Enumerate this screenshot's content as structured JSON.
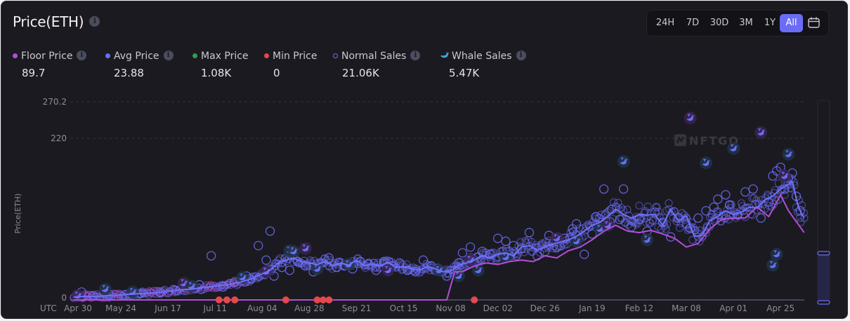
{
  "header": {
    "title": "Price(ETH)"
  },
  "range_buttons": [
    {
      "label": "24H",
      "active": false
    },
    {
      "label": "7D",
      "active": false
    },
    {
      "label": "30D",
      "active": false
    },
    {
      "label": "3M",
      "active": false
    },
    {
      "label": "1Y",
      "active": false
    },
    {
      "label": "All",
      "active": true
    }
  ],
  "calendar_icon": "calendar-icon",
  "legend": [
    {
      "label": "Floor Price",
      "value": "89.7",
      "color": "#b14fd8",
      "marker": "dot",
      "info": true
    },
    {
      "label": "Avg Price",
      "value": "23.88",
      "color": "#6b6cf6",
      "marker": "dot",
      "info": true
    },
    {
      "label": "Max Price",
      "value": "1.08K",
      "color": "#2e9d4f",
      "marker": "dot",
      "info": false
    },
    {
      "label": "Min Price",
      "value": "0",
      "color": "#e5484d",
      "marker": "dot",
      "info": false
    },
    {
      "label": "Normal Sales",
      "value": "21.06K",
      "color": "#6b6cf6",
      "marker": "ring",
      "info": true
    },
    {
      "label": "Whale Sales",
      "value": "5.47K",
      "color": "#3fa3d6",
      "marker": "whale",
      "info": true
    }
  ],
  "watermark": "NFTGO",
  "slider": {
    "range_start_percent": 0,
    "range_end_percent": 25
  },
  "chart_data": {
    "type": "scatter",
    "title": "Price(ETH)",
    "ylabel": "Price(ETH)",
    "xlabel": "",
    "x_prefix": "UTC",
    "ylim": [
      0,
      270.2
    ],
    "y_ticks": [
      0,
      220,
      270.2
    ],
    "y_tick_labels": [
      "0",
      "220",
      "270.2"
    ],
    "grid": true,
    "x_tick_labels": [
      "Apr 30",
      "May 24",
      "Jun 17",
      "Jul 11",
      "Aug 04",
      "Aug 28",
      "Sep 21",
      "Oct 15",
      "Nov 08",
      "Dec 02",
      "Dec 26",
      "Jan 19",
      "Feb 12",
      "Mar 08",
      "Apr 01",
      "Apr 25"
    ],
    "x_tick_days": [
      0,
      24,
      48,
      72,
      96,
      120,
      144,
      168,
      192,
      216,
      240,
      264,
      288,
      312,
      336,
      360
    ],
    "x_range_days": [
      0,
      373
    ],
    "series": [
      {
        "name": "Avg Price",
        "type": "line",
        "color": "#6f72f8",
        "x": [
          0,
          6,
          12,
          18,
          24,
          30,
          36,
          42,
          48,
          54,
          60,
          66,
          72,
          78,
          84,
          88,
          92,
          96,
          100,
          104,
          108,
          112,
          116,
          120,
          124,
          128,
          132,
          136,
          140,
          144,
          148,
          152,
          156,
          160,
          164,
          168,
          172,
          176,
          180,
          184,
          188,
          192,
          196,
          200,
          204,
          208,
          212,
          216,
          220,
          224,
          228,
          232,
          236,
          240,
          244,
          248,
          252,
          256,
          260,
          264,
          268,
          272,
          276,
          280,
          284,
          288,
          292,
          296,
          300,
          304,
          308,
          312,
          316,
          320,
          324,
          328,
          332,
          336,
          340,
          344,
          348,
          352,
          356,
          360,
          363,
          366,
          369,
          372
        ],
        "y": [
          1,
          2,
          2,
          3,
          4,
          5,
          6,
          7,
          9,
          11,
          12,
          14,
          16,
          18,
          21,
          24,
          28,
          33,
          38,
          48,
          52,
          55,
          50,
          48,
          46,
          50,
          44,
          48,
          45,
          52,
          44,
          47,
          44,
          49,
          42,
          43,
          40,
          38,
          43,
          40,
          36,
          37,
          45,
          48,
          52,
          58,
          55,
          60,
          62,
          58,
          70,
          72,
          66,
          70,
          74,
          77,
          80,
          85,
          92,
          100,
          104,
          112,
          122,
          115,
          110,
          115,
          114,
          115,
          100,
          122,
          106,
          113,
          85,
          86,
          107,
          112,
          120,
          115,
          118,
          125,
          124,
          135,
          140,
          150,
          155,
          160,
          125,
          110
        ]
      },
      {
        "name": "Floor Price",
        "type": "line",
        "color": "#b14fd8",
        "x": [
          0,
          50,
          100,
          150,
          190,
          194,
          198,
          204,
          210,
          216,
          222,
          228,
          234,
          240,
          246,
          252,
          258,
          264,
          270,
          276,
          282,
          288,
          294,
          300,
          306,
          312,
          318,
          324,
          330,
          336,
          342,
          348,
          354,
          360,
          364,
          368,
          372
        ],
        "y": [
          0,
          0,
          0,
          0,
          0,
          36,
          36,
          44,
          48,
          46,
          50,
          52,
          50,
          58,
          55,
          65,
          70,
          80,
          92,
          100,
          92,
          90,
          93,
          88,
          82,
          70,
          75,
          95,
          108,
          110,
          110,
          125,
          112,
          142,
          120,
          105,
          90
        ]
      },
      {
        "name": "Min Price",
        "type": "scatter",
        "color": "#e5484d",
        "x": [
          74,
          78,
          82,
          108,
          124,
          127,
          130,
          204
        ],
        "y": [
          0,
          0,
          0,
          0,
          0,
          0,
          0,
          0
        ]
      }
    ],
    "normal_sales_sample": {
      "x": [
        4,
        10,
        18,
        26,
        34,
        44,
        52,
        60,
        64,
        70,
        76,
        82,
        88,
        90,
        94,
        98,
        100,
        102,
        106,
        110,
        114,
        118,
        122,
        126,
        130,
        134,
        138,
        142,
        146,
        150,
        154,
        158,
        162,
        166,
        170,
        174,
        178,
        182,
        186,
        190,
        194,
        196,
        198,
        202,
        206,
        208,
        212,
        216,
        220,
        224,
        228,
        232,
        236,
        240,
        242,
        246,
        250,
        254,
        256,
        260,
        264,
        266,
        270,
        274,
        278,
        280,
        284,
        288,
        292,
        296,
        300,
        304,
        308,
        312,
        314,
        318,
        322,
        326,
        328,
        332,
        334,
        338,
        342,
        346,
        350,
        354,
        356,
        358,
        360,
        362,
        364,
        366,
        368,
        370
      ],
      "y": [
        8,
        3,
        5,
        4,
        6,
        8,
        10,
        14,
        18,
        58,
        15,
        22,
        30,
        26,
        72,
        52,
        92,
        30,
        42,
        38,
        50,
        44,
        36,
        48,
        55,
        42,
        45,
        40,
        50,
        46,
        38,
        50,
        44,
        48,
        38,
        36,
        52,
        44,
        40,
        30,
        38,
        48,
        62,
        70,
        56,
        64,
        60,
        82,
        78,
        72,
        68,
        90,
        58,
        64,
        86,
        70,
        82,
        95,
        102,
        60,
        88,
        112,
        150,
        122,
        108,
        150,
        98,
        108,
        92,
        118,
        104,
        84,
        110,
        102,
        96,
        110,
        120,
        125,
        136,
        142,
        128,
        115,
        146,
        150,
        110,
        132,
        168,
        175,
        180,
        150,
        165,
        172,
        140,
        120
      ]
    },
    "whale_sales_sample": {
      "x": [
        2,
        16,
        30,
        56,
        60,
        86,
        98,
        110,
        112,
        118,
        124,
        140,
        160,
        186,
        196,
        202,
        206,
        220,
        246,
        256,
        268,
        272,
        280,
        292,
        314,
        322,
        336,
        350,
        356,
        358,
        362,
        364
      ],
      "y": [
        3,
        12,
        8,
        20,
        16,
        28,
        36,
        65,
        64,
        68,
        40,
        46,
        38,
        38,
        30,
        52,
        38,
        56,
        82,
        78,
        95,
        100,
        188,
        80,
        248,
        186,
        206,
        228,
        45,
        60,
        168,
        198
      ]
    }
  }
}
